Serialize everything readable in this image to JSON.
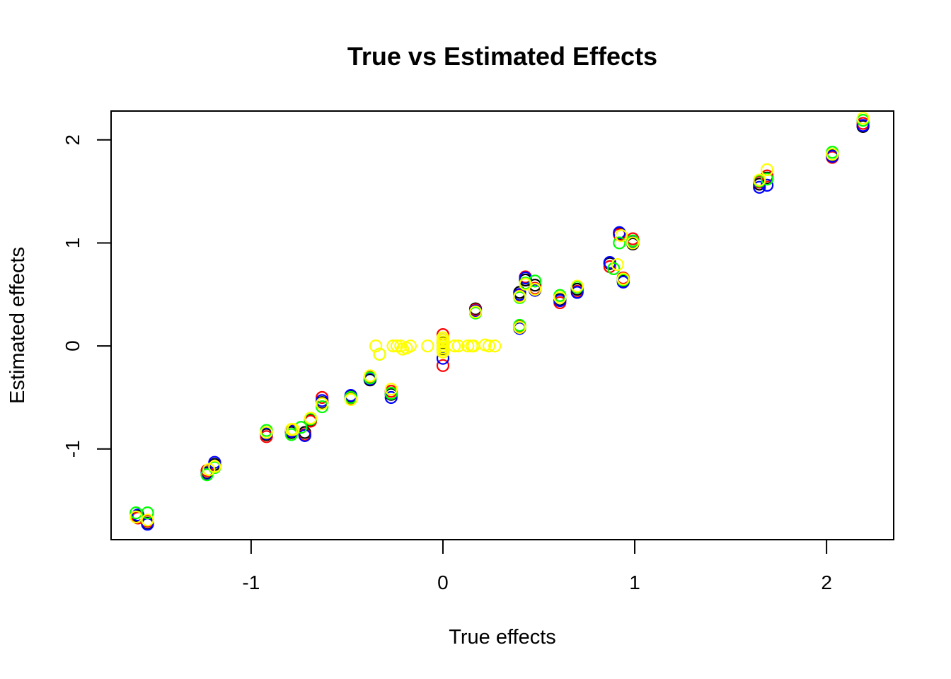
{
  "chart_data": {
    "type": "scatter",
    "title": "True vs Estimated Effects",
    "xlabel": "True effects",
    "ylabel": "Estimated effects",
    "xlim": [
      -1.73,
      2.35
    ],
    "ylim": [
      -1.88,
      2.28
    ],
    "x_ticks": [
      -1,
      0,
      1,
      2
    ],
    "y_ticks": [
      -1,
      0,
      1,
      2
    ],
    "grid": false,
    "legend": "none",
    "point_style": "open-circle",
    "series": [
      {
        "color": "#000000",
        "points": [
          [
            -1.59,
            -1.65
          ],
          [
            -1.54,
            -1.72
          ],
          [
            -1.23,
            -1.23
          ],
          [
            -1.19,
            -1.15
          ],
          [
            -0.92,
            -0.86
          ],
          [
            -0.79,
            -0.84
          ],
          [
            -0.72,
            -0.84
          ],
          [
            -0.69,
            -0.72
          ],
          [
            -0.63,
            -0.55
          ],
          [
            -0.48,
            -0.49
          ],
          [
            -0.38,
            -0.33
          ],
          [
            -0.27,
            -0.47
          ],
          [
            0.0,
            0.03
          ],
          [
            0.0,
            -0.03
          ],
          [
            0.17,
            0.36
          ],
          [
            0.4,
            0.18
          ],
          [
            0.4,
            0.52
          ],
          [
            0.43,
            0.64
          ],
          [
            0.48,
            0.59
          ],
          [
            0.61,
            0.45
          ],
          [
            0.7,
            0.55
          ],
          [
            0.87,
            0.8
          ],
          [
            0.92,
            1.09
          ],
          [
            0.94,
            0.63
          ],
          [
            0.99,
            0.99
          ],
          [
            1.65,
            1.57
          ],
          [
            1.69,
            1.63
          ],
          [
            2.03,
            1.85
          ],
          [
            2.19,
            2.13
          ]
        ]
      },
      {
        "color": "#ff0000",
        "points": [
          [
            -1.59,
            -1.67
          ],
          [
            -1.54,
            -1.7
          ],
          [
            -1.23,
            -1.21
          ],
          [
            -1.19,
            -1.17
          ],
          [
            -0.92,
            -0.88
          ],
          [
            -0.79,
            -0.82
          ],
          [
            -0.72,
            -0.86
          ],
          [
            -0.69,
            -0.73
          ],
          [
            -0.63,
            -0.5
          ],
          [
            -0.48,
            -0.51
          ],
          [
            -0.38,
            -0.3
          ],
          [
            -0.27,
            -0.44
          ],
          [
            0.0,
            0.11
          ],
          [
            0.0,
            -0.19
          ],
          [
            0.17,
            0.35
          ],
          [
            0.4,
            0.19
          ],
          [
            0.4,
            0.49
          ],
          [
            0.43,
            0.67
          ],
          [
            0.48,
            0.56
          ],
          [
            0.61,
            0.42
          ],
          [
            0.7,
            0.53
          ],
          [
            0.87,
            0.77
          ],
          [
            0.92,
            1.08
          ],
          [
            0.94,
            0.66
          ],
          [
            0.99,
            1.04
          ],
          [
            1.65,
            1.59
          ],
          [
            1.69,
            1.65
          ],
          [
            2.03,
            1.83
          ],
          [
            2.19,
            2.16
          ]
        ]
      },
      {
        "color": "#0000ff",
        "points": [
          [
            -1.59,
            -1.64
          ],
          [
            -1.54,
            -1.73
          ],
          [
            -1.23,
            -1.24
          ],
          [
            -1.19,
            -1.13
          ],
          [
            -0.92,
            -0.85
          ],
          [
            -0.79,
            -0.83
          ],
          [
            -0.72,
            -0.87
          ],
          [
            -0.69,
            -0.71
          ],
          [
            -0.63,
            -0.53
          ],
          [
            -0.48,
            -0.48
          ],
          [
            -0.38,
            -0.32
          ],
          [
            -0.27,
            -0.5
          ],
          [
            0.0,
            0.06
          ],
          [
            0.0,
            -0.12
          ],
          [
            0.17,
            0.34
          ],
          [
            0.4,
            0.17
          ],
          [
            0.4,
            0.5
          ],
          [
            0.43,
            0.66
          ],
          [
            0.48,
            0.54
          ],
          [
            0.61,
            0.44
          ],
          [
            0.7,
            0.52
          ],
          [
            0.87,
            0.81
          ],
          [
            0.92,
            1.1
          ],
          [
            0.94,
            0.62
          ],
          [
            0.99,
            1.01
          ],
          [
            1.65,
            1.54
          ],
          [
            1.69,
            1.56
          ],
          [
            2.03,
            1.84
          ],
          [
            2.19,
            2.14
          ]
        ]
      },
      {
        "color": "#00ff00",
        "points": [
          [
            -1.6,
            -1.62
          ],
          [
            -1.54,
            -1.62
          ],
          [
            -1.23,
            -1.25
          ],
          [
            -1.19,
            -1.18
          ],
          [
            -0.92,
            -0.82
          ],
          [
            -0.79,
            -0.86
          ],
          [
            -0.74,
            -0.79
          ],
          [
            -0.69,
            -0.71
          ],
          [
            -0.63,
            -0.59
          ],
          [
            -0.48,
            -0.5
          ],
          [
            -0.38,
            -0.31
          ],
          [
            -0.27,
            -0.46
          ],
          [
            -0.33,
            -0.08
          ],
          [
            0.0,
            0.0
          ],
          [
            0.17,
            0.32
          ],
          [
            0.4,
            0.2
          ],
          [
            0.4,
            0.47
          ],
          [
            0.43,
            0.61
          ],
          [
            0.48,
            0.63
          ],
          [
            0.61,
            0.49
          ],
          [
            0.7,
            0.57
          ],
          [
            0.89,
            0.75
          ],
          [
            0.92,
            1.0
          ],
          [
            0.94,
            0.64
          ],
          [
            0.99,
            1.02
          ],
          [
            1.65,
            1.6
          ],
          [
            1.69,
            1.62
          ],
          [
            2.03,
            1.88
          ],
          [
            2.19,
            2.19
          ]
        ]
      },
      {
        "color": "#ffff00",
        "points": [
          [
            -1.6,
            -1.66
          ],
          [
            -1.54,
            -1.69
          ],
          [
            -1.22,
            -1.2
          ],
          [
            -1.19,
            -1.17
          ],
          [
            -0.92,
            -0.84
          ],
          [
            -0.79,
            -0.81
          ],
          [
            -0.78,
            -0.81
          ],
          [
            -0.69,
            -0.7
          ],
          [
            -0.63,
            -0.56
          ],
          [
            -0.48,
            -0.52
          ],
          [
            -0.38,
            -0.29
          ],
          [
            -0.27,
            -0.42
          ],
          [
            -0.35,
            0.0
          ],
          [
            -0.33,
            -0.08
          ],
          [
            -0.26,
            0.0
          ],
          [
            -0.24,
            0.0
          ],
          [
            -0.21,
            -0.03
          ],
          [
            -0.22,
            0.0
          ],
          [
            -0.19,
            -0.02
          ],
          [
            -0.17,
            0.0
          ],
          [
            -0.08,
            0.0
          ],
          [
            0.0,
            0.08
          ],
          [
            0.0,
            0.06
          ],
          [
            0.0,
            0.04
          ],
          [
            0.0,
            0.02
          ],
          [
            0.0,
            0.0
          ],
          [
            0.0,
            -0.02
          ],
          [
            0.0,
            -0.04
          ],
          [
            0.0,
            -0.06
          ],
          [
            0.06,
            0.0
          ],
          [
            0.08,
            0.0
          ],
          [
            0.13,
            0.0
          ],
          [
            0.15,
            0.0
          ],
          [
            0.16,
            0.0
          ],
          [
            0.22,
            0.01
          ],
          [
            0.24,
            0.0
          ],
          [
            0.27,
            0.0
          ],
          [
            0.17,
            0.33
          ],
          [
            0.4,
            0.18
          ],
          [
            0.4,
            0.48
          ],
          [
            0.43,
            0.6
          ],
          [
            0.48,
            0.55
          ],
          [
            0.61,
            0.47
          ],
          [
            0.7,
            0.58
          ],
          [
            0.91,
            0.79
          ],
          [
            0.93,
            1.07
          ],
          [
            0.94,
            0.65
          ],
          [
            0.99,
            1.0
          ],
          [
            1.65,
            1.61
          ],
          [
            1.69,
            1.71
          ],
          [
            2.03,
            1.86
          ],
          [
            2.19,
            2.21
          ]
        ]
      }
    ]
  }
}
